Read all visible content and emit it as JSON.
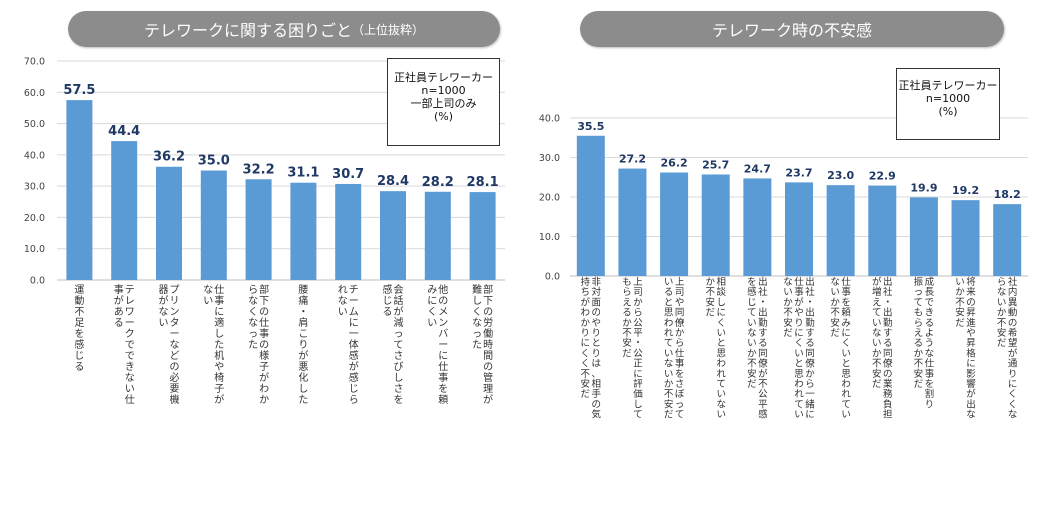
{
  "colors": {
    "bar": "#5b9bd5",
    "value_label": "#1f3864",
    "grid": "#d9d9d9",
    "banner": "#8c8c8c"
  },
  "left": {
    "banner_title": "テレワークに関する困りごと",
    "banner_sub": "（上位抜粋）",
    "legend": [
      "正社員テレワーカー",
      "n=1000",
      "一部上司のみ",
      "(%)"
    ]
  },
  "right": {
    "banner_title": "テレワーク時の不安感",
    "legend": [
      "正社員テレワーカー",
      "n=1000",
      "(%)"
    ]
  },
  "chart_data": [
    {
      "type": "bar",
      "title": "テレワークに関する困りごと（上位抜粋）",
      "ylim": [
        0,
        70
      ],
      "yticks": [
        "0.0",
        "10.0",
        "20.0",
        "30.0",
        "40.0",
        "50.0",
        "60.0",
        "70.0"
      ],
      "grid": true,
      "categories": [
        [
          "運動不足を感じる"
        ],
        [
          "テレワークでできない仕",
          "事がある"
        ],
        [
          "プリンターなどの必要機",
          "器がない"
        ],
        [
          "仕事に適した机や椅子が",
          "ない"
        ],
        [
          "部下の仕事の様子がわか",
          "らなくなった"
        ],
        [
          "腰痛・肩こりが悪化した"
        ],
        [
          "チームに一体感が感じら",
          "れない"
        ],
        [
          "会話が減ってさびしさを",
          "感じる"
        ],
        [
          "他のメンバーに仕事を頼",
          "みにくい"
        ],
        [
          "部下の労働時間の管理が",
          "難しくなった"
        ]
      ],
      "values": [
        57.5,
        44.4,
        36.2,
        35.0,
        32.2,
        31.1,
        30.7,
        28.4,
        28.2,
        28.1
      ],
      "value_labels": [
        "57.5",
        "44.4",
        "36.2",
        "35.0",
        "32.2",
        "31.1",
        "30.7",
        "28.4",
        "28.2",
        "28.1"
      ]
    },
    {
      "type": "bar",
      "title": "テレワーク時の不安感",
      "ylim": [
        0,
        40
      ],
      "yticks": [
        "0.0",
        "10.0",
        "20.0",
        "30.0",
        "40.0"
      ],
      "grid": true,
      "categories": [
        [
          "非対面のやりとりは、相手の気",
          "持ちがわかりにくく不安だ"
        ],
        [
          "上司から公平・公正に評価して",
          "もらえるか不安だ"
        ],
        [
          "上司や同僚から仕事をさぼって",
          "いると思われていないか不安だ"
        ],
        [
          "相談しにくいと思われていない",
          "か不安だ"
        ],
        [
          "出社・出勤する同僚が不公平感",
          "を感じていないか不安だ"
        ],
        [
          "出社・出勤する同僚から一緒に",
          "仕事がやりにくいと思われてい",
          "ないか不安だ"
        ],
        [
          "仕事を頼みにくいと思われてい",
          "ないか不安だ"
        ],
        [
          "出社・出勤する同僚の業務負担",
          "が増えていないか不安だ"
        ],
        [
          "成長できるような仕事を割り",
          "振ってもらえるか不安だ"
        ],
        [
          "将来の昇進や昇格に影響が出な",
          "いか不安だ"
        ],
        [
          "社内異動の希望が通りにくくな",
          "らないか不安だ"
        ]
      ],
      "values": [
        35.5,
        27.2,
        26.2,
        25.7,
        24.7,
        23.7,
        23.0,
        22.9,
        19.9,
        19.2,
        18.2
      ],
      "value_labels": [
        "35.5",
        "27.2",
        "26.2",
        "25.7",
        "24.7",
        "23.7",
        "23.0",
        "22.9",
        "19.9",
        "19.2",
        "18.2"
      ]
    }
  ]
}
